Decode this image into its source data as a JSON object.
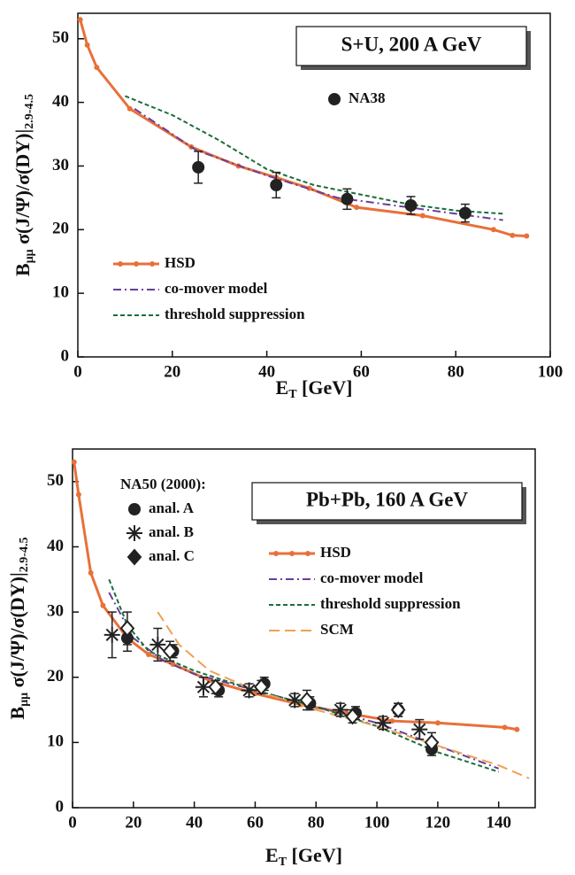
{
  "chart_data": [
    {
      "type": "line",
      "annotation": "S+U,  200 A GeV",
      "xlabel": {
        "main": "E",
        "sub": "T",
        "rest": " [GeV]"
      },
      "ylabel": {
        "main": "B",
        "sub1": "μμ",
        "mid": " σ(J/Ψ)/σ(DY)|",
        "sub2": "2.9-4.5"
      },
      "xlim": [
        0,
        100
      ],
      "ylim": [
        0,
        54
      ],
      "xticks": [
        0,
        20,
        40,
        60,
        80,
        100
      ],
      "yticks": [
        0,
        10,
        20,
        30,
        40,
        50
      ],
      "legend": "lower left",
      "points_legend": "upper right",
      "series": [
        {
          "name": "HSD",
          "color": "#e8703a",
          "line": "solid",
          "marker": "dot",
          "x": [
            0.5,
            2,
            4,
            11,
            24,
            34,
            42,
            49,
            59,
            73,
            88,
            92,
            95
          ],
          "values": [
            53,
            49,
            45.5,
            39,
            33,
            30,
            28.2,
            26.5,
            23.5,
            22.2,
            20,
            19.1,
            19
          ]
        },
        {
          "name": "co-mover model",
          "color": "#6a3d9a",
          "line": "dashdot",
          "x": [
            12,
            25,
            40,
            55,
            70,
            90
          ],
          "values": [
            39,
            32.5,
            28.5,
            25,
            23.5,
            21.5
          ]
        },
        {
          "name": "threshold suppression",
          "color": "#1a6e3a",
          "line": "dash",
          "x": [
            10,
            20,
            30,
            40,
            50,
            60,
            70,
            80,
            90
          ],
          "values": [
            41,
            38,
            34,
            29.5,
            27,
            25.5,
            24,
            23,
            22.5
          ]
        },
        {
          "name": "NA38",
          "color": "#222222",
          "marker": "circle",
          "x": [
            25.5,
            42,
            57,
            70.5,
            82
          ],
          "values": [
            29.8,
            27,
            24.8,
            23.8,
            22.6
          ],
          "errors": [
            2.5,
            2,
            1.6,
            1.4,
            1.4
          ]
        }
      ]
    },
    {
      "type": "line",
      "annotation": "Pb+Pb, 160 A GeV",
      "xlabel": {
        "main": "E",
        "sub": "T",
        "rest": " [GeV]"
      },
      "ylabel": {
        "main": "B",
        "sub1": "μμ",
        "mid": " σ(J/Ψ)/σ(DY)|",
        "sub2": "2.9-4.5"
      },
      "xlim": [
        0,
        152
      ],
      "ylim": [
        0,
        55
      ],
      "xticks": [
        0,
        20,
        40,
        60,
        80,
        100,
        120,
        140
      ],
      "yticks": [
        0,
        10,
        20,
        30,
        40,
        50
      ],
      "legend": "upper right",
      "points_legend": "upper left",
      "points_legend_title": "NA50 (2000):",
      "series": [
        {
          "name": "HSD",
          "color": "#e8703a",
          "line": "solid",
          "marker": "dot",
          "x": [
            0.5,
            2,
            6,
            10,
            18,
            25,
            33,
            45,
            60,
            75,
            90,
            105,
            120,
            142,
            146
          ],
          "values": [
            53,
            48,
            36,
            31,
            26,
            23.5,
            22,
            19.5,
            17.5,
            15.8,
            14.5,
            13.3,
            13,
            12.3,
            12
          ]
        },
        {
          "name": "co-mover model",
          "color": "#6a3d9a",
          "line": "dashdot",
          "x": [
            12,
            20,
            30,
            40,
            60,
            80,
            100,
            120,
            140
          ],
          "values": [
            33,
            26,
            22.5,
            20.5,
            18,
            15.5,
            13,
            9.5,
            6
          ]
        },
        {
          "name": "threshold suppression",
          "color": "#1a6e3a",
          "line": "dash",
          "x": [
            12,
            18,
            25,
            40,
            60,
            80,
            100,
            120,
            140
          ],
          "values": [
            35,
            28,
            24,
            21,
            18,
            15.5,
            12.5,
            8.5,
            5.5
          ]
        },
        {
          "name": "SCM",
          "color": "#f0a050",
          "line": "longdash",
          "x": [
            28,
            35,
            45,
            60,
            80,
            100,
            120,
            140,
            150
          ],
          "values": [
            30,
            25,
            21,
            18,
            15,
            12.5,
            9.5,
            6.5,
            4.5
          ]
        },
        {
          "name": "anal. A",
          "color": "#222222",
          "marker": "circle",
          "x": [
            18,
            33,
            48,
            63,
            78,
            93,
            107,
            118
          ],
          "values": [
            26,
            24,
            18,
            19,
            16,
            14.5,
            15,
            9
          ],
          "errors": [
            2,
            1,
            1,
            1,
            1,
            1,
            1,
            1
          ]
        },
        {
          "name": "anal. B",
          "color": "#222222",
          "marker": "asterisk",
          "x": [
            13,
            28,
            43,
            58,
            73,
            88,
            102,
            114
          ],
          "values": [
            26.5,
            25,
            18.5,
            18,
            16.5,
            15,
            13,
            12
          ],
          "errors": [
            3.5,
            2.5,
            1.5,
            1,
            1,
            1,
            1,
            1.5
          ]
        },
        {
          "name": "anal. C",
          "color": "#222222",
          "marker": "diamond",
          "x": [
            18,
            32,
            47,
            62,
            77,
            92,
            107,
            118
          ],
          "values": [
            27.5,
            24,
            18.5,
            18.5,
            16.5,
            14,
            15,
            10
          ],
          "errors": [
            2.5,
            1.5,
            1,
            1,
            1.5,
            1,
            1,
            1.5
          ]
        }
      ]
    }
  ]
}
